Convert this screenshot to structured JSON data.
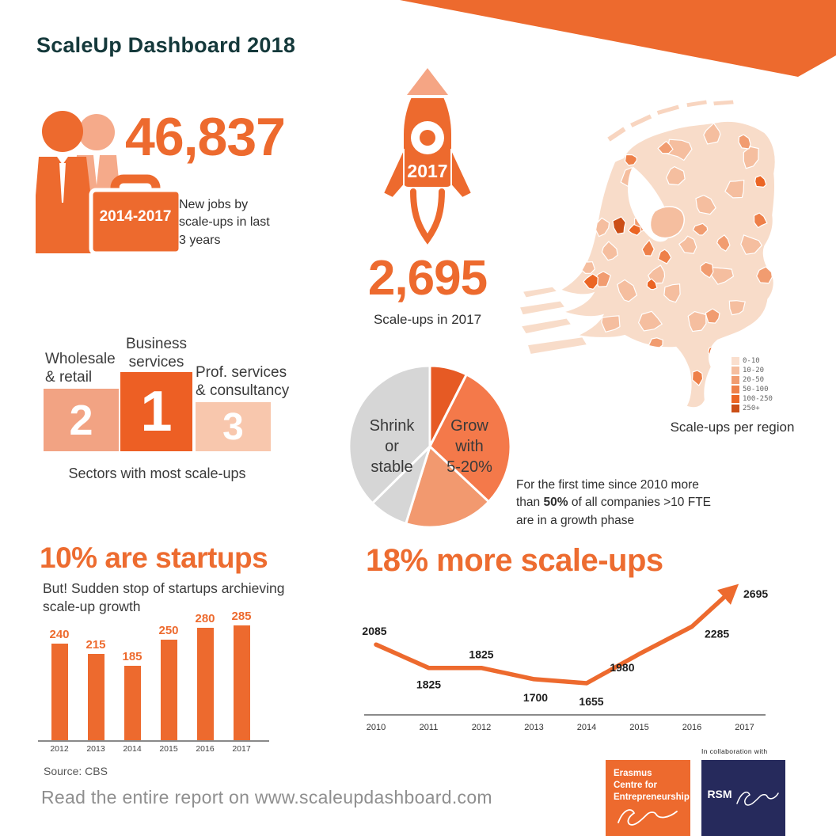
{
  "page": {
    "title": "ScaleUp Dashboard 2018"
  },
  "colors": {
    "accent_orange": "#ED6A2E",
    "heading_orange": "#ED6C30",
    "title_teal": "#15393B",
    "light_orange": "#F5AA8A",
    "gray_slice": "#D6D6D6",
    "rsm_navy": "#262A5C"
  },
  "stats": {
    "jobs": {
      "value": "46,837",
      "badge": "2014-2017",
      "caption": "New jobs by\nscale-ups in last\n3 years"
    },
    "scaleups": {
      "rocket_year": "2017",
      "value": "2,695",
      "caption": "Scale-ups in 2017"
    }
  },
  "map": {
    "caption": "Scale-ups per region",
    "legend": [
      {
        "label": "0-10",
        "color": "#FADFCE"
      },
      {
        "label": "10-20",
        "color": "#F5BE9F"
      },
      {
        "label": "20-50",
        "color": "#F19C70"
      },
      {
        "label": "50-100",
        "color": "#EE8049"
      },
      {
        "label": "100-250",
        "color": "#EB6524"
      },
      {
        "label": "250+",
        "color": "#CB4E17"
      }
    ]
  },
  "podium": {
    "caption": "Sectors with most scale-ups",
    "items": [
      {
        "rank": "1",
        "label": "Business\nservices",
        "color": "#ED5F24"
      },
      {
        "rank": "2",
        "label": "Wholesale\n& retail",
        "color": "#F2A383"
      },
      {
        "rank": "3",
        "label": "Prof. services\n& consultancy",
        "color": "#F8C7AD"
      }
    ]
  },
  "growth_note": {
    "pre": "For the first time since 2010 more\nthan ",
    "bold": "50%",
    "post": " of all companies >10 FTE\nare in a growth phase"
  },
  "footer": {
    "source": "Source: CBS",
    "read": "Read the entire report on www.scaleupdashboard.com"
  },
  "logos": {
    "ece_name": "Erasmus\nCentre for\nEntrepreneurship",
    "collab": "In collaboration with",
    "rsm": "RSM"
  },
  "chart_data": [
    {
      "type": "bar",
      "title": "10% are startups",
      "subtitle": "But! Sudden stop of startups archieving\nscale-up growth",
      "categories": [
        "2012",
        "2013",
        "2014",
        "2015",
        "2016",
        "2017"
      ],
      "values": [
        240,
        215,
        185,
        250,
        280,
        285
      ],
      "bar_color": "#ED6A2E",
      "ylim": [
        0,
        285
      ],
      "grid": false,
      "value_labels": true
    },
    {
      "type": "line",
      "title": "18% more scale-ups",
      "x": [
        "2010",
        "2011",
        "2012",
        "2013",
        "2014",
        "2015",
        "2016",
        "2017"
      ],
      "values": [
        2085,
        1825,
        1825,
        1700,
        1655,
        1980,
        2285,
        2695
      ],
      "line_color": "#ED6A2E",
      "arrow_end": true,
      "ylim": [
        1500,
        2800
      ],
      "grid": false,
      "value_labels": true
    },
    {
      "type": "pie",
      "slices": [
        {
          "label": "",
          "pct": 7.5,
          "color": "#E65A24"
        },
        {
          "label": "Grow with 5-20%",
          "pct": 29.5,
          "color": "#F4794A"
        },
        {
          "label": "",
          "pct": 17.8,
          "color": "#F2996F"
        },
        {
          "label": "",
          "pct": 7.8,
          "color": "#D6D6D6"
        },
        {
          "label": "Shrink or stable",
          "pct": 37.4,
          "color": "#D6D6D6"
        }
      ],
      "grow_label": "Grow\nwith\n5-20%",
      "shrink_label": "Shrink\nor\nstable",
      "note": "For the first time since 2010 more than 50% of all companies >10 FTE are in a growth phase"
    },
    {
      "type": "heatmap",
      "title": "Scale-ups per region",
      "legend_buckets": [
        "0-10",
        "10-20",
        "20-50",
        "50-100",
        "100-250",
        "250+"
      ],
      "legend_colors": [
        "#FADFCE",
        "#F5BE9F",
        "#F19C70",
        "#EE8049",
        "#EB6524",
        "#CB4E17"
      ]
    }
  ]
}
